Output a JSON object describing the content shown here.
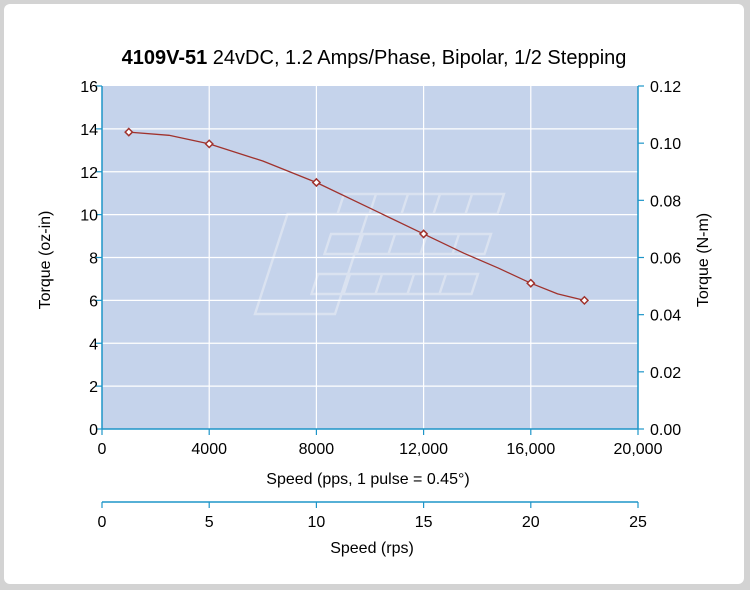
{
  "chart_data": {
    "type": "line",
    "title_bold": "4109V-51",
    "title_rest": " 24vDC, 1.2 Amps/Phase, Bipolar, 1/2 Stepping",
    "xlabel": "Speed (pps, 1 pulse = 0.45°)",
    "ylabel_left": "Torque (oz-in)",
    "ylabel_right": "Torque (N-m)",
    "x2label": "Speed (rps)",
    "xlim": [
      0,
      20000
    ],
    "ylim": [
      0,
      16
    ],
    "y2lim": [
      0,
      0.12
    ],
    "x2lim": [
      0,
      25
    ],
    "x_ticks": [
      0,
      4000,
      8000,
      12000,
      16000,
      20000
    ],
    "x_tick_labels": [
      "0",
      "4000",
      "8000",
      "12,000",
      "16,000",
      "20,000"
    ],
    "y_ticks": [
      0,
      2,
      4,
      6,
      8,
      10,
      12,
      14,
      16
    ],
    "y_tick_labels": [
      "0",
      "2",
      "4",
      "6",
      "8",
      "10",
      "12",
      "14",
      "16"
    ],
    "y2_tick_labels": [
      "0.00",
      "0.02",
      "0.04",
      "0.06",
      "0.08",
      "0.10",
      "0.12"
    ],
    "x2_ticks": [
      0,
      5,
      10,
      15,
      20,
      25
    ],
    "x2_tick_labels": [
      "0",
      "5",
      "10",
      "15",
      "20",
      "25"
    ],
    "grid": true,
    "series": [
      {
        "markers": [
          {
            "x": 1000,
            "y": 13.85
          },
          {
            "x": 4000,
            "y": 13.3
          },
          {
            "x": 8000,
            "y": 11.5
          },
          {
            "x": 12000,
            "y": 9.1
          },
          {
            "x": 16000,
            "y": 6.8
          },
          {
            "x": 18000,
            "y": 6.0
          }
        ],
        "curve": [
          {
            "x": 1000,
            "y": 13.85
          },
          {
            "x": 2500,
            "y": 13.7
          },
          {
            "x": 4000,
            "y": 13.3
          },
          {
            "x": 6000,
            "y": 12.5
          },
          {
            "x": 8000,
            "y": 11.5
          },
          {
            "x": 10000,
            "y": 10.3
          },
          {
            "x": 12000,
            "y": 9.1
          },
          {
            "x": 13500,
            "y": 8.2
          },
          {
            "x": 14800,
            "y": 7.5
          },
          {
            "x": 16000,
            "y": 6.8
          },
          {
            "x": 17000,
            "y": 6.3
          },
          {
            "x": 18000,
            "y": 6.0
          }
        ]
      }
    ],
    "colors": {
      "plot_bg": "#c5d3eb",
      "grid": "#ffffff",
      "axis": "#1e95c8",
      "line": "#a0322d",
      "marker_fill": "#ffffff",
      "watermark": "#dde4f1"
    }
  }
}
